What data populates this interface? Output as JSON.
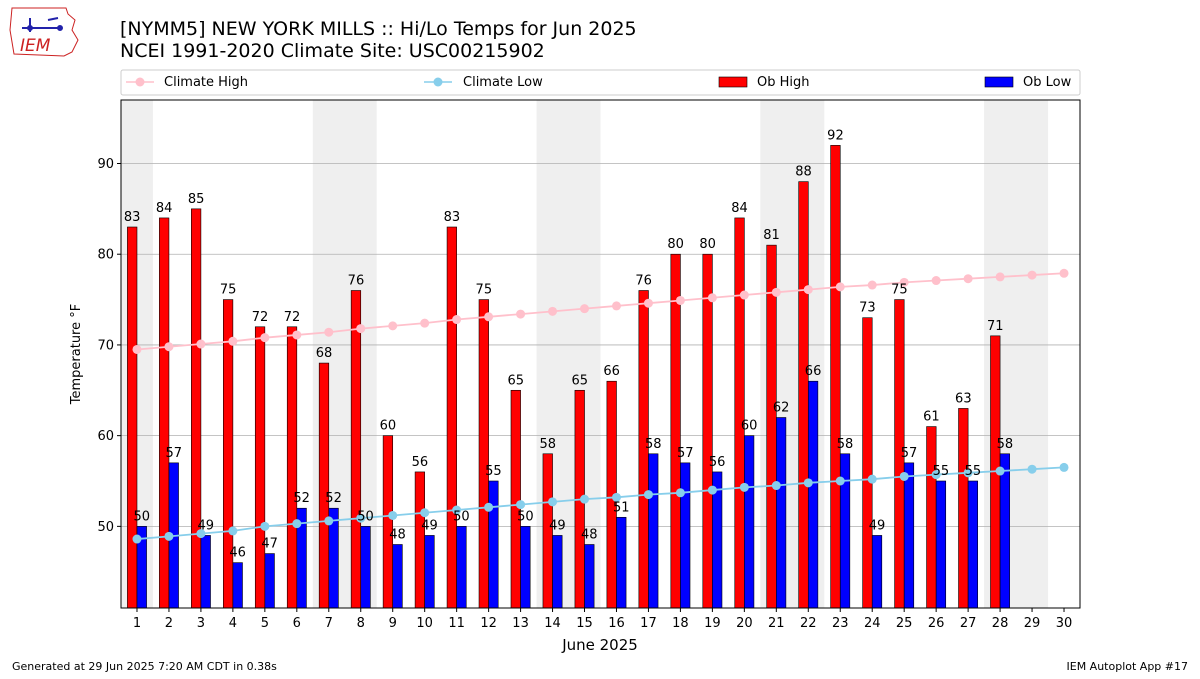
{
  "header": {
    "logo_text": "IEM",
    "title_line1": "[NYMM5] NEW YORK MILLS :: Hi/Lo Temps for Jun 2025",
    "title_line2": "NCEI 1991-2020 Climate Site: USC00215902"
  },
  "footer": {
    "generated": "Generated at 29 Jun 2025 7:20 AM CDT in 0.38s",
    "app": "IEM Autoplot App #17"
  },
  "colors": {
    "ob_high": "#ff0000",
    "ob_low": "#0000ff",
    "climate_high": "#ffc0cb",
    "climate_low": "#87ceeb",
    "weekend_shade": "#efefef"
  },
  "chart_data": {
    "type": "bar",
    "xlabel": "June 2025",
    "ylabel": "Temperature °F",
    "xlim": [
      0.5,
      30.5
    ],
    "ylim": [
      41,
      97
    ],
    "yticks": [
      50,
      60,
      70,
      80,
      90
    ],
    "grid": true,
    "legend_placement": "top",
    "categories": [
      "1",
      "2",
      "3",
      "4",
      "5",
      "6",
      "7",
      "8",
      "9",
      "10",
      "11",
      "12",
      "13",
      "14",
      "15",
      "16",
      "17",
      "18",
      "19",
      "20",
      "21",
      "22",
      "23",
      "24",
      "25",
      "26",
      "27",
      "28",
      "29",
      "30"
    ],
    "shaded_days": [
      [
        1,
        1
      ],
      [
        7,
        8
      ],
      [
        14,
        15
      ],
      [
        21,
        22
      ],
      [
        28,
        29
      ]
    ],
    "series": [
      {
        "name": "Climate High",
        "kind": "line",
        "color": "#ffc0cb",
        "values": [
          69.5,
          69.8,
          70.1,
          70.4,
          70.8,
          71.1,
          71.4,
          71.8,
          72.1,
          72.4,
          72.8,
          73.1,
          73.4,
          73.7,
          74.0,
          74.3,
          74.6,
          74.9,
          75.2,
          75.5,
          75.8,
          76.1,
          76.4,
          76.6,
          76.9,
          77.1,
          77.3,
          77.5,
          77.7,
          77.9
        ]
      },
      {
        "name": "Climate Low",
        "kind": "line",
        "color": "#87ceeb",
        "values": [
          48.6,
          48.9,
          49.2,
          49.5,
          50.0,
          50.3,
          50.6,
          50.9,
          51.2,
          51.5,
          51.8,
          52.1,
          52.4,
          52.7,
          53.0,
          53.2,
          53.5,
          53.7,
          54.0,
          54.3,
          54.5,
          54.8,
          55.0,
          55.2,
          55.5,
          55.7,
          55.9,
          56.1,
          56.3,
          56.5
        ]
      },
      {
        "name": "Ob High",
        "kind": "bar",
        "color": "#ff0000",
        "values": [
          83,
          84,
          85,
          75,
          72,
          72,
          68,
          76,
          60,
          56,
          83,
          75,
          65,
          58,
          65,
          66,
          76,
          80,
          80,
          84,
          81,
          88,
          92,
          73,
          75,
          61,
          63,
          71,
          null,
          null
        ]
      },
      {
        "name": "Ob Low",
        "kind": "bar",
        "color": "#0000ff",
        "values": [
          50,
          57,
          49,
          46,
          47,
          52,
          52,
          50,
          48,
          49,
          50,
          55,
          50,
          49,
          48,
          51,
          58,
          57,
          56,
          60,
          62,
          66,
          58,
          49,
          57,
          55,
          55,
          58,
          null,
          null
        ]
      }
    ]
  }
}
